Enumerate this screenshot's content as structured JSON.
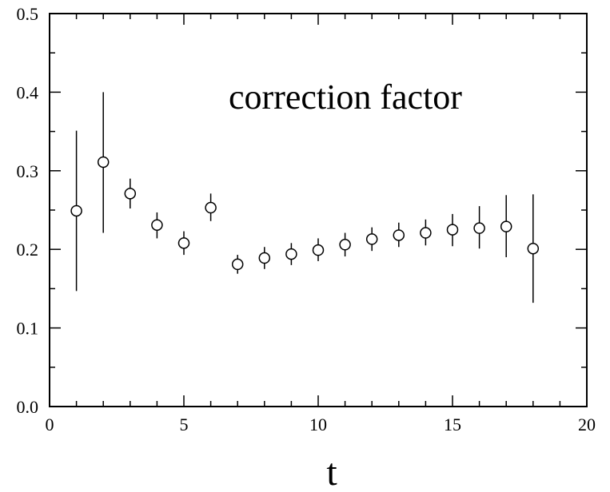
{
  "chart_data": {
    "type": "scatter",
    "title": "",
    "annotation": "correction factor",
    "xlabel": "t",
    "ylabel": "",
    "xlim": [
      0,
      20
    ],
    "ylim": [
      0.0,
      0.5
    ],
    "x_ticks": [
      {
        "value": 0,
        "label": "0"
      },
      {
        "value": 5,
        "label": "5"
      },
      {
        "value": 10,
        "label": "10"
      },
      {
        "value": 15,
        "label": "15"
      },
      {
        "value": 20,
        "label": "20"
      }
    ],
    "y_ticks": [
      {
        "value": 0.0,
        "label": "0.0"
      },
      {
        "value": 0.1,
        "label": "0.1"
      },
      {
        "value": 0.2,
        "label": "0.2"
      },
      {
        "value": 0.3,
        "label": "0.3"
      },
      {
        "value": 0.4,
        "label": "0.4"
      },
      {
        "value": 0.5,
        "label": "0.5"
      }
    ],
    "x_minor_step": 1,
    "y_minor_step": 0.05,
    "grid": false,
    "legend": "none",
    "marker": "open-circle",
    "points": [
      {
        "x": 1,
        "y": 0.249,
        "err_low": 0.147,
        "err_high": 0.351
      },
      {
        "x": 2,
        "y": 0.311,
        "err_low": 0.221,
        "err_high": 0.4
      },
      {
        "x": 3,
        "y": 0.271,
        "err_low": 0.252,
        "err_high": 0.29
      },
      {
        "x": 4,
        "y": 0.231,
        "err_low": 0.214,
        "err_high": 0.247
      },
      {
        "x": 5,
        "y": 0.208,
        "err_low": 0.193,
        "err_high": 0.223
      },
      {
        "x": 6,
        "y": 0.253,
        "err_low": 0.236,
        "err_high": 0.271
      },
      {
        "x": 7,
        "y": 0.181,
        "err_low": 0.169,
        "err_high": 0.193
      },
      {
        "x": 8,
        "y": 0.189,
        "err_low": 0.175,
        "err_high": 0.203
      },
      {
        "x": 9,
        "y": 0.194,
        "err_low": 0.18,
        "err_high": 0.208
      },
      {
        "x": 10,
        "y": 0.199,
        "err_low": 0.185,
        "err_high": 0.214
      },
      {
        "x": 11,
        "y": 0.206,
        "err_low": 0.191,
        "err_high": 0.221
      },
      {
        "x": 12,
        "y": 0.213,
        "err_low": 0.198,
        "err_high": 0.228
      },
      {
        "x": 13,
        "y": 0.218,
        "err_low": 0.203,
        "err_high": 0.234
      },
      {
        "x": 14,
        "y": 0.221,
        "err_low": 0.205,
        "err_high": 0.238
      },
      {
        "x": 15,
        "y": 0.225,
        "err_low": 0.204,
        "err_high": 0.245
      },
      {
        "x": 16,
        "y": 0.227,
        "err_low": 0.201,
        "err_high": 0.255
      },
      {
        "x": 17,
        "y": 0.229,
        "err_low": 0.19,
        "err_high": 0.269
      },
      {
        "x": 18,
        "y": 0.201,
        "err_low": 0.132,
        "err_high": 0.27
      }
    ],
    "colors": {
      "marks": "#000000",
      "background": "#ffffff"
    }
  }
}
